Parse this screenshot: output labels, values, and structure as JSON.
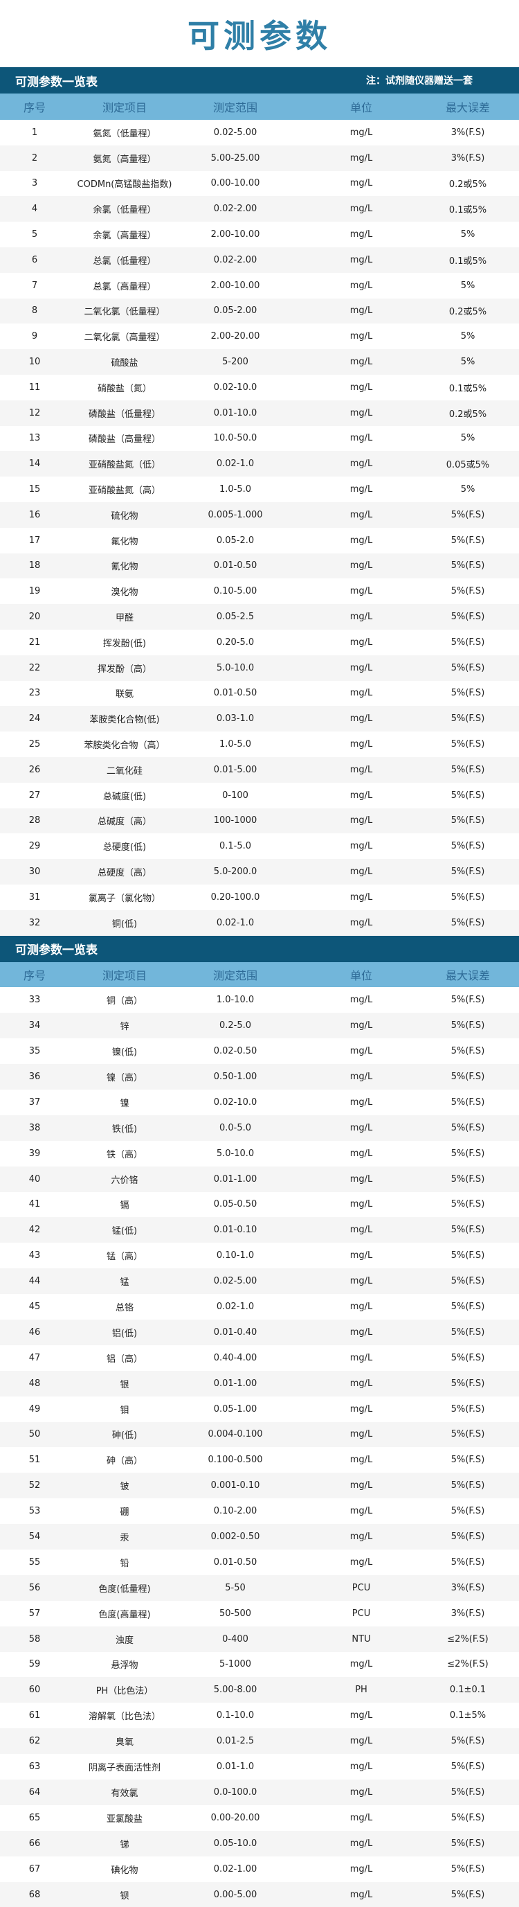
{
  "title": "可测参数",
  "tables": [
    {
      "caption": "可测参数一览表",
      "note": "注：试剂随仪器赠送一套",
      "headers": [
        "序号",
        "测定项目",
        "测定范围",
        "单位",
        "最大误差"
      ],
      "rows": [
        [
          "1",
          "氨氮（低量程）",
          "0.02-5.00",
          "mg/L",
          "3%(F.S)"
        ],
        [
          "2",
          "氨氮（高量程）",
          "5.00-25.00",
          "mg/L",
          "3%(F.S)"
        ],
        [
          "3",
          "CODMn(高锰酸盐指数)",
          "0.00-10.00",
          "mg/L",
          "0.2或5%"
        ],
        [
          "4",
          "余氯（低量程）",
          "0.02-2.00",
          "mg/L",
          "0.1或5%"
        ],
        [
          "5",
          "余氯（高量程）",
          "2.00-10.00",
          "mg/L",
          "5%"
        ],
        [
          "6",
          "总氯（低量程）",
          "0.02-2.00",
          "mg/L",
          "0.1或5%"
        ],
        [
          "7",
          "总氯（高量程）",
          "2.00-10.00",
          "mg/L",
          "5%"
        ],
        [
          "8",
          "二氧化氯（低量程）",
          "0.05-2.00",
          "mg/L",
          "0.2或5%"
        ],
        [
          "9",
          "二氧化氯（高量程）",
          "2.00-20.00",
          "mg/L",
          "5%"
        ],
        [
          "10",
          "硫酸盐",
          "5-200",
          "mg/L",
          "5%"
        ],
        [
          "11",
          "硝酸盐（氮）",
          "0.02-10.0",
          "mg/L",
          "0.1或5%"
        ],
        [
          "12",
          "磷酸盐（低量程）",
          "0.01-10.0",
          "mg/L",
          "0.2或5%"
        ],
        [
          "13",
          "磷酸盐（高量程）",
          "10.0-50.0",
          "mg/L",
          "5%"
        ],
        [
          "14",
          "亚硝酸盐氮（低）",
          "0.02-1.0",
          "mg/L",
          "0.05或5%"
        ],
        [
          "15",
          "亚硝酸盐氮（高）",
          "1.0-5.0",
          "mg/L",
          "5%"
        ],
        [
          "16",
          "硫化物",
          "0.005-1.000",
          "mg/L",
          "5%(F.S)"
        ],
        [
          "17",
          "氟化物",
          "0.05-2.0",
          "mg/L",
          "5%(F.S)"
        ],
        [
          "18",
          "氰化物",
          "0.01-0.50",
          "mg/L",
          "5%(F.S)"
        ],
        [
          "19",
          "溴化物",
          "0.10-5.00",
          "mg/L",
          "5%(F.S)"
        ],
        [
          "20",
          "甲醛",
          "0.05-2.5",
          "mg/L",
          "5%(F.S)"
        ],
        [
          "21",
          "挥发酚(低)",
          "0.20-5.0",
          "mg/L",
          "5%(F.S)"
        ],
        [
          "22",
          "挥发酚（高）",
          "5.0-10.0",
          "mg/L",
          "5%(F.S)"
        ],
        [
          "23",
          "联氨",
          "0.01-0.50",
          "mg/L",
          "5%(F.S)"
        ],
        [
          "24",
          "苯胺类化合物(低)",
          "0.03-1.0",
          "mg/L",
          "5%(F.S)"
        ],
        [
          "25",
          "苯胺类化合物（高）",
          "1.0-5.0",
          "mg/L",
          "5%(F.S)"
        ],
        [
          "26",
          "二氧化硅",
          "0.01-5.00",
          "mg/L",
          "5%(F.S)"
        ],
        [
          "27",
          "总碱度(低)",
          "0-100",
          "mg/L",
          "5%(F.S)"
        ],
        [
          "28",
          "总碱度（高）",
          "100-1000",
          "mg/L",
          "5%(F.S)"
        ],
        [
          "29",
          "总硬度(低)",
          "0.1-5.0",
          "mg/L",
          "5%(F.S)"
        ],
        [
          "30",
          "总硬度（高）",
          "5.0-200.0",
          "mg/L",
          "5%(F.S)"
        ],
        [
          "31",
          "氯离子（氯化物）",
          "0.20-100.0",
          "mg/L",
          "5%(F.S)"
        ],
        [
          "32",
          "铜(低)",
          "0.02-1.0",
          "mg/L",
          "5%(F.S)"
        ]
      ]
    },
    {
      "caption": "可测参数一览表",
      "headers": [
        "序号",
        "测定项目",
        "测定范围",
        "单位",
        "最大误差"
      ],
      "rows": [
        [
          "33",
          "铜（高）",
          "1.0-10.0",
          "mg/L",
          "5%(F.S)"
        ],
        [
          "34",
          "锌",
          "0.2-5.0",
          "mg/L",
          "5%(F.S)"
        ],
        [
          "35",
          "镍(低)",
          "0.02-0.50",
          "mg/L",
          "5%(F.S)"
        ],
        [
          "36",
          "镍（高）",
          "0.50-1.00",
          "mg/L",
          "5%(F.S)"
        ],
        [
          "37",
          "镍",
          "0.02-10.0",
          "mg/L",
          "5%(F.S)"
        ],
        [
          "38",
          "铁(低)",
          "0.0-5.0",
          "mg/L",
          "5%(F.S)"
        ],
        [
          "39",
          "铁（高）",
          "5.0-10.0",
          "mg/L",
          "5%(F.S)"
        ],
        [
          "40",
          "六价铬",
          "0.01-1.00",
          "mg/L",
          "5%(F.S)"
        ],
        [
          "41",
          "镉",
          "0.05-0.50",
          "mg/L",
          "5%(F.S)"
        ],
        [
          "42",
          "锰(低)",
          "0.01-0.10",
          "mg/L",
          "5%(F.S)"
        ],
        [
          "43",
          "锰（高）",
          "0.10-1.0",
          "mg/L",
          "5%(F.S)"
        ],
        [
          "44",
          "锰",
          "0.02-5.00",
          "mg/L",
          "5%(F.S)"
        ],
        [
          "45",
          "总铬",
          "0.02-1.0",
          "mg/L",
          "5%(F.S)"
        ],
        [
          "46",
          "铝(低)",
          "0.01-0.40",
          "mg/L",
          "5%(F.S)"
        ],
        [
          "47",
          "铝（高）",
          "0.40-4.00",
          "mg/L",
          "5%(F.S)"
        ],
        [
          "48",
          "银",
          "0.01-1.00",
          "mg/L",
          "5%(F.S)"
        ],
        [
          "49",
          "钼",
          "0.05-1.00",
          "mg/L",
          "5%(F.S)"
        ],
        [
          "50",
          "砷(低)",
          "0.004-0.100",
          "mg/L",
          "5%(F.S)"
        ],
        [
          "51",
          "砷（高）",
          "0.100-0.500",
          "mg/L",
          "5%(F.S)"
        ],
        [
          "52",
          "铍",
          "0.001-0.10",
          "mg/L",
          "5%(F.S)"
        ],
        [
          "53",
          "硼",
          "0.10-2.00",
          "mg/L",
          "5%(F.S)"
        ],
        [
          "54",
          "汞",
          "0.002-0.50",
          "mg/L",
          "5%(F.S)"
        ],
        [
          "55",
          "铅",
          "0.01-0.50",
          "mg/L",
          "5%(F.S)"
        ],
        [
          "56",
          "色度(低量程)",
          "5-50",
          "PCU",
          "3%(F.S)"
        ],
        [
          "57",
          "色度(高量程)",
          "50-500",
          "PCU",
          "3%(F.S)"
        ],
        [
          "58",
          "浊度",
          "0-400",
          "NTU",
          "≤2%(F.S)"
        ],
        [
          "59",
          "悬浮物",
          "5-1000",
          "mg/L",
          "≤2%(F.S)"
        ],
        [
          "60",
          "PH（比色法）",
          "5.00-8.00",
          "PH",
          "0.1±0.1"
        ],
        [
          "61",
          "溶解氧（比色法）",
          "0.1-10.0",
          "mg/L",
          "0.1±5%"
        ],
        [
          "62",
          "臭氧",
          "0.01-2.5",
          "mg/L",
          "5%(F.S)"
        ],
        [
          "63",
          "阴离子表面活性剂",
          "0.01-1.0",
          "mg/L",
          "5%(F.S)"
        ],
        [
          "64",
          "有效氯",
          "0.0-100.0",
          "mg/L",
          "5%(F.S)"
        ],
        [
          "65",
          "亚氯酸盐",
          "0.00-20.00",
          "mg/L",
          "5%(F.S)"
        ],
        [
          "66",
          "锑",
          "0.05-10.0",
          "mg/L",
          "5%(F.S)"
        ],
        [
          "67",
          "碘化物",
          "0.02-1.00",
          "mg/L",
          "5%(F.S)"
        ],
        [
          "68",
          "钡",
          "0.00-5.00",
          "mg/L",
          "5%(F.S)"
        ]
      ]
    }
  ],
  "colors": {
    "title": "#2f7fa7",
    "caption_bar": "#0d5679",
    "header_bar": "#72b6da",
    "header_text": "#2d6a96",
    "stripe": "#f5f5f5"
  }
}
